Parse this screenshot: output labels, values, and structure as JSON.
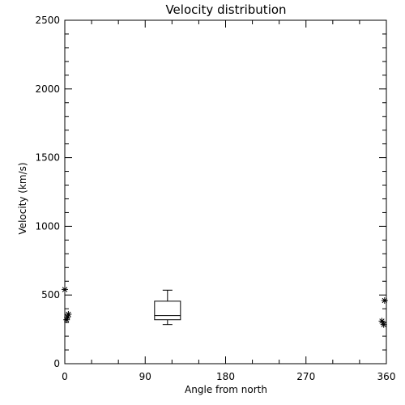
{
  "chart_data": {
    "type": "scatter",
    "title": "Velocity distribution",
    "xlabel": "Angle from north",
    "ylabel": "Velocity (km/s)",
    "xlim": [
      0,
      360
    ],
    "ylim": [
      0,
      2500
    ],
    "xticks": [
      0,
      90,
      180,
      270,
      360
    ],
    "yticks": [
      0,
      500,
      1000,
      1500,
      2000,
      2500
    ],
    "grid": false,
    "points": [
      {
        "x": 0,
        "y": 540
      },
      {
        "x": 4,
        "y": 360
      },
      {
        "x": 3,
        "y": 340
      },
      {
        "x": 2,
        "y": 320
      },
      {
        "x": 358,
        "y": 460
      },
      {
        "x": 355,
        "y": 310
      },
      {
        "x": 357,
        "y": 285
      }
    ],
    "boxplot": {
      "x": 115,
      "min": 285,
      "q1": 320,
      "median": 350,
      "q3": 455,
      "max": 535
    }
  }
}
